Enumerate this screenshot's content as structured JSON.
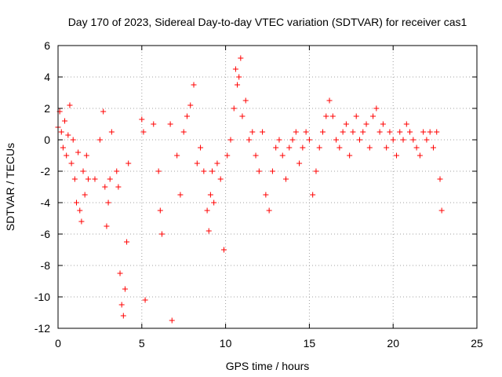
{
  "chart_data": {
    "type": "scatter",
    "title": "Day 170 of 2023, Sidereal Day-to-day VTEC variation (SDTVAR) for receiver cas1",
    "xlabel": "GPS time / hours",
    "ylabel": "SDTVAR / TECUs",
    "xlim": [
      0,
      25
    ],
    "ylim": [
      -12,
      6
    ],
    "x_ticks": [
      0,
      5,
      10,
      15,
      20,
      25
    ],
    "y_ticks": [
      -12,
      -10,
      -8,
      -6,
      -4,
      -2,
      0,
      2,
      4,
      6
    ],
    "x_tick_labels": [
      "0",
      "5",
      "10",
      "15",
      "20",
      "25"
    ],
    "y_tick_labels": [
      "-12",
      "-10",
      "-8",
      "-6",
      "-4",
      "-2",
      "0",
      "2",
      "4",
      "6"
    ],
    "grid": true,
    "marker": "+",
    "marker_color": "#ff0000",
    "series": [
      {
        "name": "SDTVAR",
        "x": [
          0.0,
          0.1,
          0.2,
          0.3,
          0.4,
          0.5,
          0.6,
          0.7,
          0.8,
          0.9,
          1.0,
          1.1,
          1.2,
          1.3,
          1.4,
          1.5,
          1.6,
          1.7,
          1.8,
          2.2,
          2.5,
          2.7,
          2.8,
          2.9,
          3.0,
          3.1,
          3.2,
          3.5,
          3.6,
          3.7,
          3.8,
          3.9,
          4.0,
          4.1,
          4.2,
          5.0,
          5.1,
          5.2,
          5.7,
          6.0,
          6.1,
          6.2,
          6.7,
          6.8,
          7.1,
          7.3,
          7.5,
          7.7,
          7.9,
          8.1,
          8.3,
          8.5,
          8.7,
          8.9,
          9.0,
          9.1,
          9.2,
          9.3,
          9.5,
          9.7,
          9.9,
          10.1,
          10.3,
          10.5,
          10.6,
          10.7,
          10.8,
          10.9,
          11.0,
          11.2,
          11.4,
          11.6,
          11.8,
          12.0,
          12.2,
          12.4,
          12.6,
          12.8,
          13.0,
          13.2,
          13.4,
          13.6,
          13.8,
          14.0,
          14.2,
          14.4,
          14.6,
          14.8,
          15.0,
          15.2,
          15.4,
          15.6,
          15.8,
          16.0,
          16.2,
          16.4,
          16.6,
          16.8,
          17.0,
          17.2,
          17.4,
          17.6,
          17.8,
          18.0,
          18.2,
          18.4,
          18.6,
          18.8,
          19.0,
          19.2,
          19.4,
          19.6,
          19.8,
          20.0,
          20.2,
          20.4,
          20.6,
          20.8,
          21.0,
          21.2,
          21.4,
          21.6,
          21.8,
          22.0,
          22.2,
          22.4,
          22.6,
          22.8,
          22.9
        ],
        "y": [
          0.8,
          1.8,
          0.5,
          -0.5,
          1.2,
          -1.0,
          0.3,
          2.2,
          -1.5,
          0.0,
          -2.5,
          -4.0,
          -0.8,
          -4.5,
          -5.2,
          -2.0,
          -3.5,
          -1.0,
          -2.5,
          -2.5,
          0.0,
          1.8,
          -3.0,
          -5.5,
          -4.0,
          -2.5,
          0.5,
          -2.0,
          -3.0,
          -8.5,
          -10.5,
          -11.2,
          -9.5,
          -6.5,
          -1.5,
          1.3,
          0.5,
          -10.2,
          1.0,
          -2.0,
          -4.5,
          -6.0,
          1.0,
          -11.5,
          -1.0,
          -3.5,
          0.5,
          1.5,
          2.2,
          3.5,
          -1.5,
          -0.5,
          -2.0,
          -4.5,
          -5.8,
          -3.5,
          -2.0,
          -4.0,
          -1.5,
          -2.5,
          -7.0,
          -1.0,
          0.0,
          2.0,
          4.5,
          3.5,
          4.0,
          5.2,
          1.5,
          2.5,
          0.0,
          0.5,
          -1.0,
          -2.0,
          0.5,
          -3.5,
          -4.5,
          -2.0,
          -0.5,
          0.0,
          -1.0,
          -2.5,
          -0.5,
          0.0,
          0.5,
          -1.5,
          -0.5,
          0.5,
          0.0,
          -3.5,
          -2.0,
          -0.5,
          0.5,
          1.5,
          2.5,
          1.5,
          0.0,
          -0.5,
          0.5,
          1.0,
          -1.0,
          0.5,
          1.5,
          0.0,
          0.5,
          1.0,
          -0.5,
          1.5,
          2.0,
          0.5,
          1.0,
          -0.5,
          0.5,
          0.0,
          -1.0,
          0.5,
          0.0,
          1.0,
          0.5,
          0.0,
          -0.5,
          -1.0,
          0.5,
          0.0,
          0.5,
          -0.5,
          0.5,
          -2.5,
          -4.5
        ]
      }
    ]
  }
}
